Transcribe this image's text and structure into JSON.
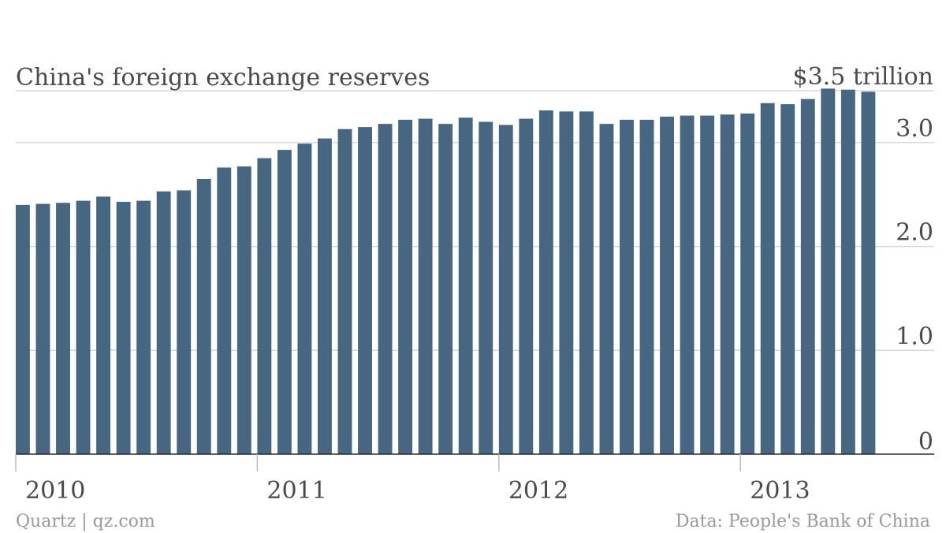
{
  "chart_data": {
    "type": "bar",
    "title": "China's foreign exchange reserves",
    "unit_label": "$3.5 trillion",
    "xlabel": "",
    "ylabel": "",
    "ylim": [
      0,
      3.5
    ],
    "y_ticks": [
      {
        "value": 0,
        "label": "0"
      },
      {
        "value": 1.0,
        "label": "1.0"
      },
      {
        "value": 2.0,
        "label": "2.0"
      },
      {
        "value": 3.0,
        "label": "3.0"
      },
      {
        "value": 3.5,
        "label": "$3.5 trillion"
      }
    ],
    "x_ticks": [
      {
        "index": 0,
        "label": "2010"
      },
      {
        "index": 12,
        "label": "2011"
      },
      {
        "index": 24,
        "label": "2012"
      },
      {
        "index": 36,
        "label": "2013"
      }
    ],
    "grid": true,
    "legend": "none",
    "bar_color": "#476682",
    "values": [
      2.4,
      2.41,
      2.42,
      2.44,
      2.48,
      2.43,
      2.44,
      2.53,
      2.54,
      2.65,
      2.76,
      2.77,
      2.85,
      2.93,
      2.99,
      3.04,
      3.13,
      3.15,
      3.18,
      3.22,
      3.23,
      3.18,
      3.24,
      3.2,
      3.17,
      3.23,
      3.31,
      3.3,
      3.3,
      3.18,
      3.22,
      3.22,
      3.25,
      3.26,
      3.26,
      3.27,
      3.28,
      3.38,
      3.37,
      3.42,
      3.52,
      3.51,
      3.49
    ]
  },
  "footer": {
    "source_left": "Quartz | qz.com",
    "source_right": "Data: People's Bank of China"
  }
}
